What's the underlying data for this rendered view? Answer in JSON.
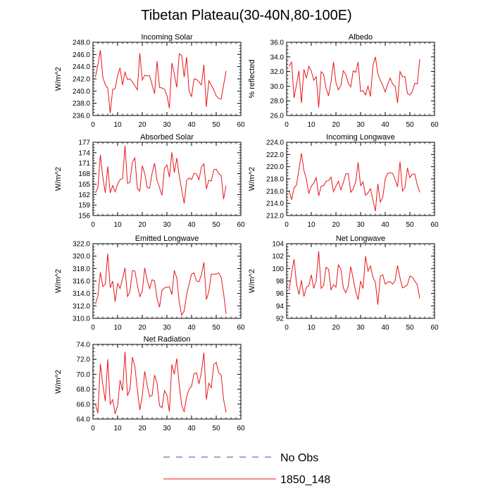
{
  "title": "Tibetan Plateau(30-40N,80-100E)",
  "legend": [
    {
      "label": "No Obs",
      "color": "#4a4aa8",
      "dash": true
    },
    {
      "label": "1850_148",
      "color": "#e8161b",
      "dash": false
    }
  ],
  "chart_data": [
    {
      "type": "line",
      "title": "Incoming Solar",
      "ylabel": "W/m^2",
      "xlim": [
        0,
        60
      ],
      "xticks": [
        "0",
        "10",
        "20",
        "30",
        "40",
        "50",
        "60"
      ],
      "ylim": [
        236,
        248
      ],
      "yticks": [
        "236.0",
        "238.0",
        "240.0",
        "242.0",
        "244.0",
        "246.0",
        "248.0"
      ],
      "series": [
        {
          "name": "1850_148",
          "color": "#e8161b",
          "x": [
            1,
            2,
            3,
            4,
            5,
            6,
            7,
            8,
            9,
            10,
            11,
            12,
            13,
            14,
            15,
            16,
            17,
            18,
            19,
            20,
            21,
            22,
            23,
            24,
            25,
            26,
            27,
            28,
            29,
            30,
            31,
            32,
            33,
            34,
            35,
            36,
            37,
            38,
            39,
            40,
            41,
            42,
            43,
            44,
            45,
            46,
            47,
            48,
            49,
            50,
            51,
            52,
            53,
            54
          ],
          "values": [
            242.3,
            244.3,
            246.7,
            242.3,
            241.0,
            240.5,
            236.4,
            240.3,
            240.4,
            242.6,
            243.8,
            241.0,
            243.1,
            241.9,
            242.0,
            241.5,
            240.9,
            240.2,
            246.2,
            241.8,
            242.6,
            242.5,
            242.5,
            241.0,
            239.6,
            244.9,
            240.6,
            240.5,
            240.3,
            239.3,
            237.2,
            244.6,
            242.8,
            240.6,
            246.1,
            245.8,
            242.3,
            245.6,
            240.0,
            239.1,
            242.0,
            241.9,
            241.5,
            241.0,
            244.3,
            237.4,
            241.7,
            241.0,
            240.2,
            239.2,
            238.8,
            238.7,
            241.0,
            243.3
          ]
        }
      ]
    },
    {
      "type": "line",
      "title": "Albedo",
      "ylabel": "% reflected",
      "xlim": [
        0,
        60
      ],
      "xticks": [
        "0",
        "10",
        "20",
        "30",
        "40",
        "50",
        "60"
      ],
      "ylim": [
        26,
        36
      ],
      "yticks": [
        "26.0",
        "28.0",
        "30.0",
        "32.0",
        "34.0",
        "36.0"
      ],
      "series": [
        {
          "name": "1850_148",
          "color": "#e8161b",
          "x": [
            1,
            2,
            3,
            4,
            5,
            6,
            7,
            8,
            9,
            10,
            11,
            12,
            13,
            14,
            15,
            16,
            17,
            18,
            19,
            20,
            21,
            22,
            23,
            24,
            25,
            26,
            27,
            28,
            29,
            30,
            31,
            32,
            33,
            34,
            35,
            36,
            37,
            38,
            39,
            40,
            41,
            42,
            43,
            44,
            45,
            46,
            47,
            48,
            49,
            50,
            51,
            52,
            53,
            54
          ],
          "values": [
            32.7,
            33.3,
            28.4,
            30.2,
            32.1,
            27.7,
            32.3,
            31.1,
            32.7,
            32.1,
            30.8,
            31.3,
            27.1,
            32.0,
            31.6,
            29.7,
            28.7,
            30.6,
            33.3,
            30.5,
            29.5,
            30.1,
            32.1,
            31.6,
            30.4,
            29.9,
            32.1,
            31.9,
            33.3,
            29.3,
            29.4,
            28.8,
            30.0,
            28.6,
            32.8,
            34.0,
            31.7,
            30.8,
            30.1,
            29.2,
            30.3,
            31.1,
            30.3,
            30.0,
            27.7,
            32.0,
            31.3,
            31.3,
            29.0,
            28.8,
            29.3,
            30.4,
            30.3,
            33.7
          ]
        }
      ]
    },
    {
      "type": "line",
      "title": "Absorbed Solar",
      "ylabel": "W/m^2",
      "xlim": [
        0,
        60
      ],
      "xticks": [
        "0",
        "10",
        "20",
        "30",
        "40",
        "50",
        "60"
      ],
      "ylim": [
        156,
        177
      ],
      "yticks": [
        "156",
        "159",
        "162",
        "165",
        "168",
        "171",
        "174",
        "177"
      ],
      "series": [
        {
          "name": "1850_148",
          "color": "#e8161b",
          "x": [
            1,
            2,
            3,
            4,
            5,
            6,
            7,
            8,
            9,
            10,
            11,
            12,
            13,
            14,
            15,
            16,
            17,
            18,
            19,
            20,
            21,
            22,
            23,
            24,
            25,
            26,
            27,
            28,
            29,
            30,
            31,
            32,
            33,
            34,
            35,
            36,
            37,
            38,
            39,
            40,
            41,
            42,
            43,
            44,
            45,
            46,
            47,
            48,
            49,
            50,
            51,
            52,
            53,
            54
          ],
          "values": [
            162.5,
            164.0,
            173.4,
            167.0,
            162.5,
            170.1,
            162.5,
            164.6,
            162.8,
            165.0,
            166.3,
            166.6,
            176.0,
            165.2,
            165.5,
            171.3,
            172.5,
            163.8,
            163.0,
            170.3,
            168.0,
            164.0,
            163.8,
            168.2,
            171.0,
            166.0,
            164.0,
            161.8,
            169.5,
            170.5,
            167.0,
            174.1,
            168.3,
            172.5,
            167.4,
            163.4,
            159.5,
            166.0,
            166.8,
            166.3,
            168.1,
            167.9,
            166.3,
            169.9,
            170.8,
            163.6,
            166.1,
            165.9,
            169.1,
            169.3,
            168.0,
            167.5,
            160.7,
            164.6
          ]
        }
      ]
    },
    {
      "type": "line",
      "title": "Incoming Longwave",
      "ylabel": "W/m^2",
      "xlim": [
        0,
        60
      ],
      "xticks": [
        "0",
        "10",
        "20",
        "30",
        "40",
        "50",
        "60"
      ],
      "ylim": [
        212,
        224
      ],
      "yticks": [
        "212.0",
        "214.0",
        "216.0",
        "218.0",
        "220.0",
        "222.0",
        "224.0"
      ],
      "series": [
        {
          "name": "1850_148",
          "color": "#e8161b",
          "x": [
            1,
            2,
            3,
            4,
            5,
            6,
            7,
            8,
            9,
            10,
            11,
            12,
            13,
            14,
            15,
            16,
            17,
            18,
            19,
            20,
            21,
            22,
            23,
            24,
            25,
            26,
            27,
            28,
            29,
            30,
            31,
            32,
            33,
            34,
            35,
            36,
            37,
            38,
            39,
            40,
            41,
            42,
            43,
            44,
            45,
            46,
            47,
            48,
            49,
            50,
            51,
            52,
            53,
            54
          ],
          "values": [
            216.0,
            214.6,
            216.5,
            217.0,
            219.6,
            222.2,
            219.4,
            218.0,
            215.6,
            216.8,
            217.3,
            218.2,
            215.2,
            216.8,
            216.9,
            217.6,
            217.7,
            218.3,
            215.9,
            216.8,
            217.6,
            216.2,
            217.4,
            218.8,
            218.9,
            215.8,
            216.4,
            217.5,
            220.7,
            216.9,
            217.5,
            215.3,
            215.7,
            216.4,
            214.6,
            212.7,
            217.2,
            214.2,
            215.0,
            218.0,
            218.9,
            219.0,
            218.9,
            217.9,
            216.7,
            220.8,
            216.0,
            216.6,
            219.8,
            218.2,
            218.8,
            218.8,
            217.0,
            215.8
          ]
        }
      ]
    },
    {
      "type": "line",
      "title": "Emitted Longwave",
      "ylabel": "W/m^2",
      "xlim": [
        0,
        60
      ],
      "xticks": [
        "0",
        "10",
        "20",
        "30",
        "40",
        "50",
        "60"
      ],
      "ylim": [
        310,
        322
      ],
      "yticks": [
        "310.0",
        "312.0",
        "314.0",
        "316.0",
        "318.0",
        "320.0",
        "322.0"
      ],
      "series": [
        {
          "name": "1850_148",
          "color": "#e8161b",
          "x": [
            1,
            2,
            3,
            4,
            5,
            6,
            7,
            8,
            9,
            10,
            11,
            12,
            13,
            14,
            15,
            16,
            17,
            18,
            19,
            20,
            21,
            22,
            23,
            24,
            25,
            26,
            27,
            28,
            29,
            30,
            31,
            32,
            33,
            34,
            35,
            36,
            37,
            38,
            39,
            40,
            41,
            42,
            43,
            44,
            45,
            46,
            47,
            48,
            49,
            50,
            51,
            52,
            53,
            54
          ],
          "values": [
            312.3,
            313.6,
            317.4,
            315.1,
            315.5,
            320.4,
            314.9,
            316.0,
            312.7,
            315.6,
            314.8,
            316.4,
            318.1,
            313.5,
            314.3,
            317.7,
            317.6,
            315.4,
            313.5,
            314.4,
            318.1,
            316.1,
            314.8,
            316.2,
            316.0,
            313.2,
            311.8,
            314.5,
            314.9,
            315.0,
            315.1,
            313.8,
            317.7,
            316.5,
            312.6,
            310.5,
            311.2,
            313.8,
            315.5,
            317.1,
            317.3,
            316.0,
            315.9,
            317.0,
            319.0,
            313.0,
            314.3,
            317.1,
            317.1,
            317.1,
            317.3,
            316.6,
            314.0,
            310.7
          ]
        }
      ]
    },
    {
      "type": "line",
      "title": "Net Longwave",
      "ylabel": "W/m^2",
      "xlim": [
        0,
        60
      ],
      "xticks": [
        "0",
        "10",
        "20",
        "30",
        "40",
        "50",
        "60"
      ],
      "ylim": [
        92,
        104
      ],
      "yticks": [
        "92",
        "94",
        "96",
        "98",
        "100",
        "102",
        "104"
      ],
      "series": [
        {
          "name": "1850_148",
          "color": "#e8161b",
          "x": [
            1,
            2,
            3,
            4,
            5,
            6,
            7,
            8,
            9,
            10,
            11,
            12,
            13,
            14,
            15,
            16,
            17,
            18,
            19,
            20,
            21,
            22,
            23,
            24,
            25,
            26,
            27,
            28,
            29,
            30,
            31,
            32,
            33,
            34,
            35,
            36,
            37,
            38,
            39,
            40,
            41,
            42,
            43,
            44,
            45,
            46,
            47,
            48,
            49,
            50,
            51,
            52,
            53,
            54
          ],
          "values": [
            96.5,
            99.2,
            101.5,
            97.6,
            95.8,
            98.1,
            95.5,
            97.0,
            97.2,
            99.0,
            96.8,
            98.1,
            102.8,
            96.8,
            97.3,
            100.2,
            99.9,
            96.6,
            97.4,
            97.0,
            100.6,
            99.9,
            96.9,
            96.1,
            97.2,
            100.3,
            98.4,
            96.3,
            95.0,
            98.0,
            96.8,
            102.0,
            99.6,
            100.4,
            98.6,
            97.8,
            94.2,
            98.8,
            99.0,
            97.5,
            97.8,
            97.9,
            97.5,
            98.1,
            100.5,
            98.5,
            96.9,
            97.1,
            97.4,
            98.8,
            98.6,
            98.0,
            97.4,
            95.2
          ]
        }
      ]
    },
    {
      "type": "line",
      "title": "Net Radiation",
      "ylabel": "W/m^2",
      "xlim": [
        0,
        60
      ],
      "xticks": [
        "0",
        "10",
        "20",
        "30",
        "40",
        "50",
        "60"
      ],
      "ylim": [
        64,
        74
      ],
      "yticks": [
        "64.0",
        "66.0",
        "68.0",
        "70.0",
        "72.0",
        "74.0"
      ],
      "series": [
        {
          "name": "1850_148",
          "color": "#e8161b",
          "x": [
            1,
            2,
            3,
            4,
            5,
            6,
            7,
            8,
            9,
            10,
            11,
            12,
            13,
            14,
            15,
            16,
            17,
            18,
            19,
            20,
            21,
            22,
            23,
            24,
            25,
            26,
            27,
            28,
            29,
            30,
            31,
            32,
            33,
            34,
            35,
            36,
            37,
            38,
            39,
            40,
            41,
            42,
            43,
            44,
            45,
            46,
            47,
            48,
            49,
            50,
            51,
            52,
            53,
            54
          ],
          "values": [
            66.0,
            64.8,
            71.4,
            68.6,
            66.4,
            72.0,
            66.0,
            66.6,
            64.7,
            65.8,
            69.2,
            67.8,
            73.0,
            67.1,
            68.0,
            72.3,
            71.0,
            68.0,
            65.2,
            67.1,
            70.4,
            68.5,
            67.0,
            67.2,
            69.9,
            68.8,
            65.8,
            65.5,
            67.8,
            67.2,
            65.0,
            71.3,
            70.0,
            72.1,
            68.6,
            65.8,
            65.0,
            67.0,
            68.0,
            68.4,
            70.1,
            70.2,
            68.7,
            70.3,
            72.9,
            66.6,
            68.8,
            68.2,
            71.3,
            71.6,
            70.2,
            69.9,
            66.6,
            64.9
          ]
        }
      ]
    }
  ]
}
